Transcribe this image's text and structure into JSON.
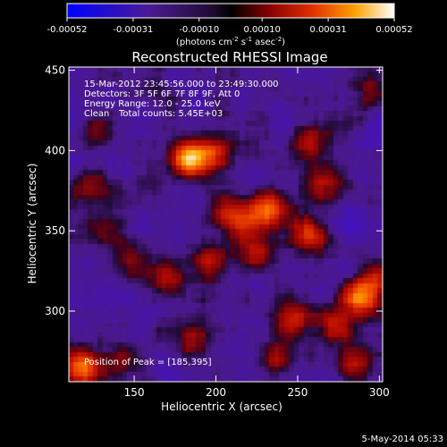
{
  "chart_data": {
    "type": "heatmap",
    "title": "Reconstructed RHESSI Image",
    "xlabel": "Heliocentric X (arcsec)",
    "ylabel": "Heliocentric Y (arcsec)",
    "xlim": [
      110,
      302
    ],
    "ylim": [
      256,
      452
    ],
    "xticks": [
      150,
      200,
      250,
      300
    ],
    "yticks": [
      300,
      350,
      400,
      450
    ],
    "colorbar": {
      "range": [
        -0.00052,
        0.00052
      ],
      "ticks": [
        "-0.00052",
        "-0.00031",
        "-0.00010",
        "0.00010",
        "0.00031",
        "0.00052"
      ],
      "tick_values": [
        -0.00052,
        -0.00031,
        -0.0001,
        0.0001,
        0.00031,
        0.00052
      ],
      "label": "(photons cm",
      "label_exp1": "-2",
      "label_mid": " s",
      "label_exp2": "-1",
      "label_mid2": " asec",
      "label_exp3": "-2",
      "label_end": ")"
    },
    "annotations": {
      "time_range": "15-Mar-2012 23:45:56.000 to 23:49:30.000",
      "detectors": "Detectors: 3F 5F 6F 7F 8F 9F, Att 0",
      "energy_range": "Energy Range: 12.0 - 25.0 keV",
      "clean": "Clean",
      "total_counts": "Total counts: 5.45E+03",
      "peak": "Position of Peak = [185,395]"
    },
    "peak": [
      185,
      395
    ],
    "sources": [
      {
        "x": 185,
        "y": 395,
        "amp": 0.00052
      },
      {
        "x": 200,
        "y": 400,
        "amp": 0.00022
      },
      {
        "x": 216,
        "y": 356,
        "amp": 0.0003
      },
      {
        "x": 232,
        "y": 363,
        "amp": 0.00036
      },
      {
        "x": 258,
        "y": 348,
        "amp": 0.00032
      },
      {
        "x": 225,
        "y": 335,
        "amp": 0.00026
      },
      {
        "x": 196,
        "y": 332,
        "amp": 0.00022
      },
      {
        "x": 172,
        "y": 320,
        "amp": 0.0002
      },
      {
        "x": 150,
        "y": 330,
        "amp": 0.00018
      },
      {
        "x": 265,
        "y": 380,
        "amp": 0.00022
      },
      {
        "x": 258,
        "y": 408,
        "amp": 0.00024
      },
      {
        "x": 127,
        "y": 412,
        "amp": 0.00016
      },
      {
        "x": 126,
        "y": 380,
        "amp": 0.00014
      },
      {
        "x": 133,
        "y": 352,
        "amp": 0.00016
      },
      {
        "x": 288,
        "y": 308,
        "amp": 0.00044
      },
      {
        "x": 298,
        "y": 320,
        "amp": 0.0002
      },
      {
        "x": 248,
        "y": 297,
        "amp": 0.00032
      },
      {
        "x": 273,
        "y": 292,
        "amp": 0.00024
      },
      {
        "x": 120,
        "y": 265,
        "amp": 0.00042
      },
      {
        "x": 145,
        "y": 270,
        "amp": 0.0002
      },
      {
        "x": 186,
        "y": 282,
        "amp": 0.0002
      },
      {
        "x": 293,
        "y": 440,
        "amp": 0.0002
      },
      {
        "x": 238,
        "y": 270,
        "amp": 0.0002
      },
      {
        "x": 160,
        "y": 380,
        "amp": 0.00012
      },
      {
        "x": 285,
        "y": 268,
        "amp": 0.00018
      },
      {
        "x": 205,
        "y": 365,
        "amp": 0.00014
      }
    ]
  },
  "footer": {
    "date": "5-May-2014 05:33"
  }
}
